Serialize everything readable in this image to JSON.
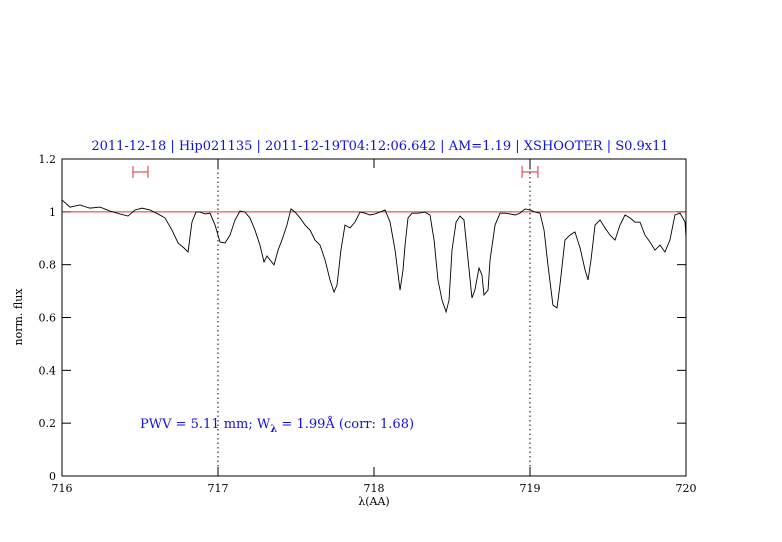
{
  "chart_data": {
    "type": "line",
    "title": "2011-12-18 | Hip021135 | 2011-12-19T04:12:06.642 | AM=1.19 | XSHOOTER | S0.9x11",
    "xlabel": "λ(AA)",
    "ylabel": "norm. flux",
    "annotation": [
      "PWV = 5.11 mm; W",
      "λ",
      " = 1.99Å  (corr: 1.68)"
    ],
    "xlim": [
      716,
      720
    ],
    "ylim": [
      0,
      1.2
    ],
    "xticks": [
      716,
      717,
      718,
      719,
      720
    ],
    "yticks": [
      0,
      0.2,
      0.4,
      0.6,
      0.8,
      1,
      1.2
    ],
    "color": "#000000",
    "reference_line": 1,
    "reference_color": "#e03030",
    "vlines": [
      717,
      719
    ],
    "windows": [
      {
        "xmin": 716.455,
        "xmax": 716.551,
        "y": 1.151
      },
      {
        "xmin": 718.949,
        "xmax": 719.051,
        "y": 1.151
      }
    ],
    "window_color": "#e03030",
    "x": [
      716.0,
      716.051,
      716.115,
      716.179,
      716.244,
      716.308,
      716.372,
      716.423,
      716.468,
      716.513,
      716.564,
      716.615,
      716.66,
      716.705,
      716.744,
      716.782,
      716.808,
      716.833,
      716.859,
      716.885,
      716.917,
      716.949,
      716.981,
      717.013,
      717.045,
      717.077,
      717.109,
      717.141,
      717.173,
      717.205,
      717.237,
      717.269,
      717.295,
      717.314,
      717.333,
      717.359,
      717.385,
      717.41,
      717.442,
      717.468,
      717.494,
      717.526,
      717.558,
      717.59,
      717.622,
      717.654,
      717.686,
      717.718,
      717.744,
      717.763,
      717.788,
      717.814,
      717.846,
      717.878,
      717.91,
      717.942,
      717.974,
      718.006,
      718.038,
      718.071,
      718.103,
      718.135,
      718.167,
      718.186,
      718.199,
      718.218,
      718.244,
      718.282,
      718.327,
      718.359,
      718.385,
      718.41,
      718.436,
      718.462,
      718.481,
      718.5,
      718.526,
      718.551,
      718.577,
      718.603,
      718.628,
      718.647,
      718.673,
      718.692,
      718.705,
      718.731,
      718.744,
      718.776,
      718.808,
      718.84,
      718.872,
      718.904,
      718.936,
      718.968,
      719.0,
      719.032,
      719.064,
      719.09,
      719.115,
      719.147,
      719.173,
      719.192,
      719.224,
      719.256,
      719.288,
      719.321,
      719.353,
      719.372,
      719.391,
      719.417,
      719.449,
      719.481,
      719.513,
      719.545,
      719.577,
      719.609,
      719.641,
      719.673,
      719.705,
      719.737,
      719.769,
      719.801,
      719.833,
      719.865,
      719.897,
      719.929,
      719.962,
      719.994,
      720.0
    ],
    "values": [
      1.045,
      1.018,
      1.026,
      1.014,
      1.018,
      1.003,
      0.992,
      0.984,
      1.007,
      1.014,
      1.007,
      0.992,
      0.977,
      0.931,
      0.882,
      0.863,
      0.848,
      0.961,
      0.999,
      0.999,
      0.992,
      0.995,
      0.95,
      0.886,
      0.882,
      0.912,
      0.969,
      1.003,
      0.999,
      0.977,
      0.931,
      0.874,
      0.81,
      0.833,
      0.818,
      0.799,
      0.855,
      0.893,
      0.95,
      1.011,
      0.999,
      0.977,
      0.95,
      0.931,
      0.893,
      0.874,
      0.818,
      0.742,
      0.696,
      0.723,
      0.855,
      0.95,
      0.939,
      0.961,
      0.999,
      0.995,
      0.988,
      0.992,
      0.999,
      1.007,
      0.961,
      0.855,
      0.704,
      0.78,
      0.874,
      0.977,
      0.995,
      0.995,
      0.999,
      0.988,
      0.893,
      0.742,
      0.666,
      0.621,
      0.666,
      0.855,
      0.961,
      0.984,
      0.969,
      0.818,
      0.674,
      0.704,
      0.787,
      0.761,
      0.685,
      0.704,
      0.818,
      0.95,
      0.995,
      0.995,
      0.992,
      0.988,
      0.995,
      1.011,
      1.007,
      0.999,
      0.995,
      0.931,
      0.799,
      0.647,
      0.636,
      0.723,
      0.893,
      0.912,
      0.924,
      0.863,
      0.78,
      0.742,
      0.818,
      0.95,
      0.969,
      0.939,
      0.912,
      0.893,
      0.95,
      0.988,
      0.977,
      0.961,
      0.961,
      0.912,
      0.886,
      0.855,
      0.874,
      0.848,
      0.893,
      0.988,
      0.995,
      0.961,
      0.901
    ]
  }
}
